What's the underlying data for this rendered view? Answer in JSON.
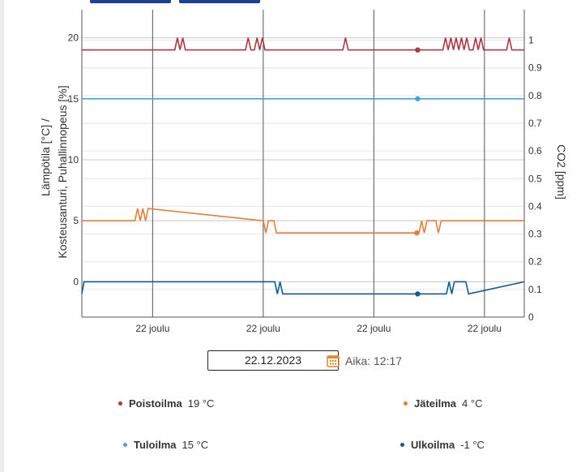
{
  "date_picker": {
    "value": "22.12.2023",
    "time_label": "Aika: 12:17"
  },
  "legend": [
    {
      "name": "Poistoilma",
      "value": "19 °C"
    },
    {
      "name": "Jäteilma",
      "value": "4 °C"
    },
    {
      "name": "Tuloilma",
      "value": "15 °C"
    },
    {
      "name": "Ulkoilma",
      "value": "-1 °C"
    }
  ],
  "chart_data": {
    "type": "line",
    "ylabel": "Lämpötila [°C] / Kosteusanturi, Puhallinnopeus [%]",
    "ylabel_lines": [
      "Lämpötila [°C] /",
      "Kosteusanturi, Puhallinnopeus [%]"
    ],
    "y2label": "CO2 [ppm]",
    "ylim": [
      -2.9,
      22.3
    ],
    "y_ticks": [
      0,
      5,
      10,
      15,
      20
    ],
    "y2lim": [
      0,
      1.11
    ],
    "y2_ticks": [
      0,
      0.1,
      0.2,
      0.3,
      0.4,
      0.5,
      0.6,
      0.7,
      0.8,
      0.9,
      1
    ],
    "x_tick_labels": [
      "22 joulu",
      "22 joulu",
      "22 joulu",
      "22 joulu"
    ],
    "xlim": [
      0,
      1000
    ],
    "x_ticks": [
      160,
      410,
      660,
      910
    ],
    "grid": true,
    "colors": {
      "Poistoilma": "#b03545",
      "Tuloilma": "#43a3e0",
      "Jäteilma": "#e67c3c",
      "Ulkoilma": "#0d5b9a"
    },
    "series": [
      {
        "name": "Poistoilma",
        "x": [
          0,
          210,
          216,
          222,
          228,
          234,
          370,
          376,
          382,
          390,
          396,
          402,
          408,
          414,
          590,
          596,
          602,
          816,
          822,
          828,
          834,
          840,
          846,
          852,
          858,
          864,
          870,
          876,
          884,
          890,
          896,
          902,
          908,
          960,
          966,
          972,
          1000
        ],
        "y": [
          19,
          19,
          20,
          19,
          20,
          19,
          19,
          20,
          19,
          19,
          20,
          19,
          20,
          19,
          19,
          20,
          19,
          19,
          20,
          19,
          20,
          19,
          20,
          19,
          20,
          19,
          20,
          19,
          19,
          20,
          19,
          20,
          19,
          19,
          20,
          19,
          19
        ],
        "marker": {
          "x": 759,
          "y": 19
        }
      },
      {
        "name": "Tuloilma",
        "x": [
          0,
          1000
        ],
        "y": [
          15,
          15
        ],
        "marker": {
          "x": 759,
          "y": 15
        }
      },
      {
        "name": "Jäteilma",
        "x": [
          0,
          120,
          126,
          132,
          138,
          144,
          150,
          410,
          416,
          422,
          428,
          434,
          440,
          450,
          756,
          762,
          768,
          774,
          780,
          800,
          806,
          812,
          818,
          1000
        ],
        "y": [
          5,
          5,
          6,
          5,
          6,
          5,
          6,
          5,
          4,
          5,
          5,
          5,
          4,
          4,
          4,
          4,
          5,
          4,
          5,
          5,
          4,
          5,
          5,
          5
        ],
        "marker": {
          "x": 757,
          "y": 4
        }
      },
      {
        "name": "Ulkoilma",
        "x": [
          0,
          5,
          430,
          436,
          442,
          448,
          454,
          460,
          824,
          830,
          836,
          842,
          850,
          856,
          868,
          874,
          1000
        ],
        "y": [
          -1,
          0,
          0,
          0,
          -1,
          0,
          -1,
          -1,
          -1,
          0,
          -1,
          0,
          0,
          0,
          0,
          -1,
          0
        ],
        "marker": {
          "x": 759,
          "y": -1
        }
      }
    ]
  }
}
